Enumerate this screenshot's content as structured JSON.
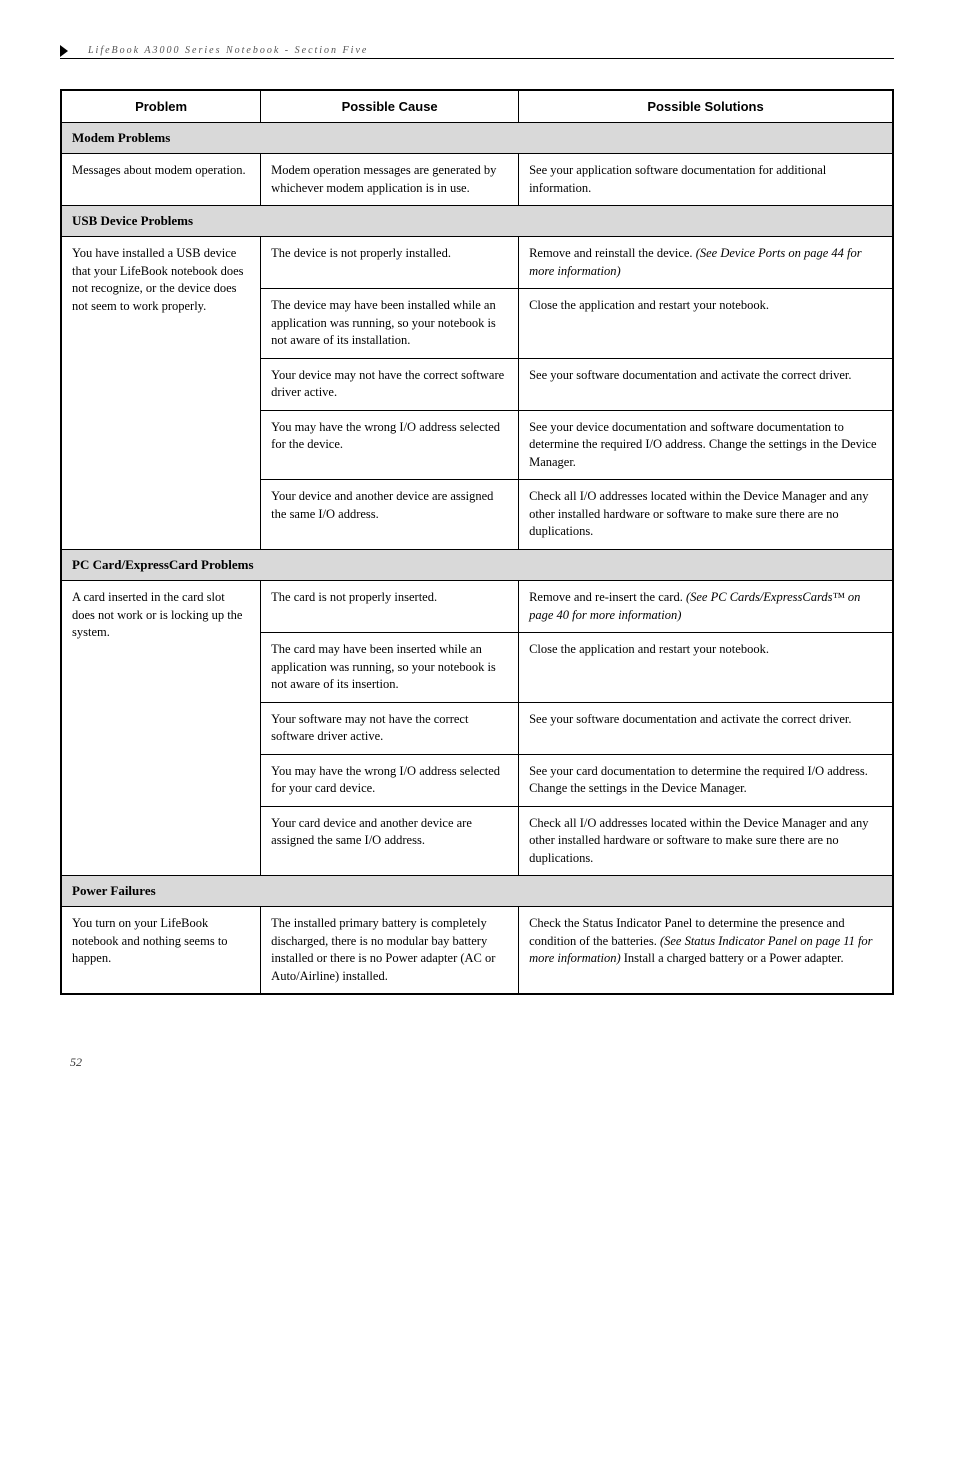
{
  "breadcrumb": "LifeBook A3000 Series Notebook - Section Five",
  "headers": {
    "problem": "Problem",
    "cause": "Possible Cause",
    "solution": "Possible Solutions"
  },
  "sections": {
    "modem": "Modem Problems",
    "usb": "USB Device Problems",
    "pccard": "PC Card/ExpressCard Problems",
    "power": "Power Failures"
  },
  "rows": {
    "modem1": {
      "problem": "Messages about modem operation.",
      "cause": "Modem operation messages are generated by whichever modem application is in use.",
      "solution": "See your application software documentation for additional information."
    },
    "usb1": {
      "problem": "You have installed a USB device that your LifeBook notebook does not recognize, or the device does not seem to work properly.",
      "cause1": "The device is not properly installed.",
      "solution1a": "Remove and reinstall the device. ",
      "solution1b": "(See Device Ports on page 44 for more information)",
      "cause2": "The device may have been installed while an application was running, so your notebook is not aware of its installation.",
      "solution2": "Close the application and restart your notebook.",
      "cause3": "Your device may not have the correct software driver active.",
      "solution3": "See your software documentation and activate the correct driver.",
      "cause4": "You may have the wrong I/O address selected for the device.",
      "solution4": "See your device documentation and software documentation to determine the required I/O address. Change the settings in the Device Manager.",
      "cause5": "Your device and another device are assigned the same I/O address.",
      "solution5": "Check all I/O addresses located within the Device Manager and any other installed hardware or software to make sure there are no duplications."
    },
    "pc1": {
      "problem": "A card inserted in the card slot does not work or is locking up the system.",
      "cause1": "The card is not properly inserted.",
      "solution1a": "Remove and re-insert the card. ",
      "solution1b": "(See PC Cards/ExpressCards™ on page 40 for more information)",
      "cause2": "The card may have been inserted while an application was running, so your notebook is not aware of its insertion.",
      "solution2": "Close the application and restart your notebook.",
      "cause3": "Your software may not have the correct software driver active.",
      "solution3": "See your software documentation and activate the correct driver.",
      "cause4": "You may have the wrong I/O address selected for your card device.",
      "solution4": "See your card documentation to determine the required I/O address. Change the settings in the Device Manager.",
      "cause5": "Your card device and another device are assigned the same I/O address.",
      "solution5": "Check all I/O addresses located within the Device Manager and any other installed hardware or software to make sure there are no duplications."
    },
    "power1": {
      "problem": "You turn on your LifeBook notebook and nothing seems to happen.",
      "cause": "The installed primary battery is completely discharged, there is no modular bay battery installed or there is no Power adapter (AC or Auto/Airline) installed.",
      "solution_a": "Check the Status Indicator Panel to determine the presence and condition of the batteries. ",
      "solution_b": "(See Status Indicator Panel on page 11 for more information)",
      "solution_c": " Install a charged battery or a Power adapter."
    }
  },
  "pageNumber": "52"
}
